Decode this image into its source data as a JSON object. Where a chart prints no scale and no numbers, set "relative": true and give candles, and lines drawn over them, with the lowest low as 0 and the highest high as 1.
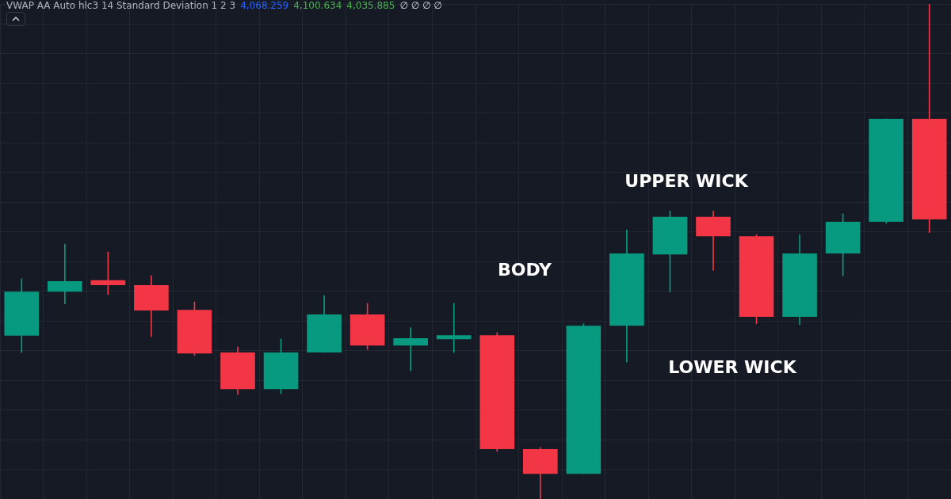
{
  "chart_data": {
    "type": "candlestick",
    "relative": true,
    "grid": true,
    "legend": false,
    "annotations": [
      "VWAP AA Auto hlc3 14 Standard Deviation 1 2 3",
      "4,068.259",
      "4,100.634",
      "4,035.885",
      "∅ ∅ ∅ ∅",
      "BODY",
      "UPPER WICK",
      "LOWER WICK"
    ],
    "categories": [
      null,
      null,
      null,
      null,
      null,
      null,
      null,
      null,
      null,
      null,
      null,
      null,
      null,
      null,
      null,
      null,
      null,
      null,
      null,
      null,
      null,
      null
    ],
    "ohlc": [
      [
        0.33,
        0.445,
        0.296,
        0.419
      ],
      [
        0.419,
        0.515,
        0.394,
        0.44
      ],
      [
        0.442,
        0.499,
        0.413,
        0.432
      ],
      [
        0.432,
        0.451,
        0.328,
        0.381
      ],
      [
        0.382,
        0.398,
        0.29,
        0.294
      ],
      [
        0.296,
        0.307,
        0.211,
        0.222
      ],
      [
        0.222,
        0.323,
        0.213,
        0.296
      ],
      [
        0.296,
        0.411,
        0.296,
        0.373
      ],
      [
        0.373,
        0.395,
        0.302,
        0.31
      ],
      [
        0.31,
        0.346,
        0.259,
        0.325
      ],
      [
        0.323,
        0.395,
        0.296,
        0.331
      ],
      [
        0.331,
        0.336,
        0.096,
        0.101
      ],
      [
        0.101,
        0.104,
        0.0,
        0.051
      ],
      [
        0.051,
        0.354,
        0.051,
        0.35
      ],
      [
        0.35,
        0.544,
        0.277,
        0.496
      ],
      [
        0.494,
        0.582,
        0.418,
        0.57
      ],
      [
        0.57,
        0.582,
        0.462,
        0.531
      ],
      [
        0.531,
        0.534,
        0.354,
        0.368
      ],
      [
        0.368,
        0.534,
        0.352,
        0.496
      ],
      [
        0.496,
        0.576,
        0.451,
        0.56
      ],
      [
        0.56,
        0.768,
        0.557,
        0.768
      ],
      [
        0.768,
        1.0,
        0.538,
        0.565
      ]
    ],
    "colors": [
      "#089981",
      "#089981",
      "#f23645",
      "#f23645",
      "#f23645",
      "#f23645",
      "#089981",
      "#089981",
      "#f23645",
      "#089981",
      "#089981",
      "#f23645",
      "#f23645",
      "#089981",
      "#089981",
      "#089981",
      "#f23645",
      "#f23645",
      "#089981",
      "#089981",
      "#089981",
      "#f23645"
    ]
  }
}
